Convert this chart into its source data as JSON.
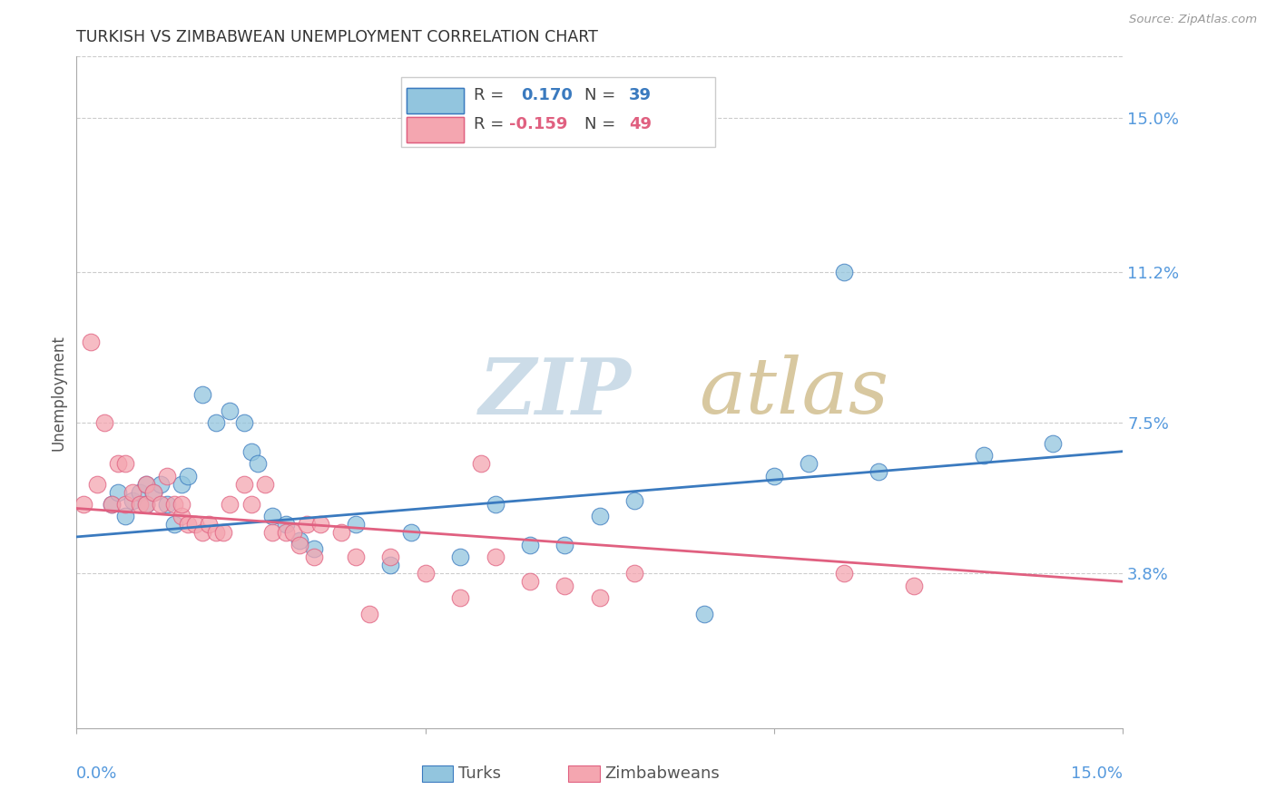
{
  "title": "TURKISH VS ZIMBABWEAN UNEMPLOYMENT CORRELATION CHART",
  "source": "Source: ZipAtlas.com",
  "ylabel": "Unemployment",
  "ytick_labels": [
    "15.0%",
    "11.2%",
    "7.5%",
    "3.8%"
  ],
  "ytick_values": [
    0.15,
    0.112,
    0.075,
    0.038
  ],
  "xlim": [
    0.0,
    0.15
  ],
  "ylim": [
    0.0,
    0.165
  ],
  "turks_color": "#92c5de",
  "zimbabweans_color": "#f4a6b0",
  "trendline_turks_color": "#3a7abf",
  "trendline_zimbabweans_color": "#e06080",
  "watermark_zip_color": "#ccdce8",
  "watermark_atlas_color": "#d8c8a0",
  "background_color": "#ffffff",
  "grid_color": "#cccccc",
  "title_color": "#333333",
  "axis_label_color": "#5599dd",
  "legend_label_color_turks": "#3a7abf",
  "legend_label_color_zim": "#e06080",
  "turks_x": [
    0.005,
    0.006,
    0.007,
    0.008,
    0.009,
    0.01,
    0.01,
    0.011,
    0.012,
    0.013,
    0.014,
    0.015,
    0.016,
    0.018,
    0.02,
    0.022,
    0.024,
    0.025,
    0.026,
    0.028,
    0.03,
    0.032,
    0.034,
    0.04,
    0.045,
    0.048,
    0.055,
    0.06,
    0.065,
    0.07,
    0.075,
    0.08,
    0.09,
    0.1,
    0.105,
    0.11,
    0.115,
    0.13,
    0.14
  ],
  "turks_y": [
    0.055,
    0.058,
    0.052,
    0.056,
    0.058,
    0.055,
    0.06,
    0.058,
    0.06,
    0.055,
    0.05,
    0.06,
    0.062,
    0.082,
    0.075,
    0.078,
    0.075,
    0.068,
    0.065,
    0.052,
    0.05,
    0.046,
    0.044,
    0.05,
    0.04,
    0.048,
    0.042,
    0.055,
    0.045,
    0.045,
    0.052,
    0.056,
    0.028,
    0.062,
    0.065,
    0.112,
    0.063,
    0.067,
    0.07
  ],
  "zimbabweans_x": [
    0.001,
    0.002,
    0.003,
    0.004,
    0.005,
    0.006,
    0.007,
    0.007,
    0.008,
    0.009,
    0.01,
    0.01,
    0.011,
    0.012,
    0.013,
    0.014,
    0.015,
    0.015,
    0.016,
    0.017,
    0.018,
    0.019,
    0.02,
    0.021,
    0.022,
    0.024,
    0.025,
    0.027,
    0.028,
    0.03,
    0.031,
    0.032,
    0.033,
    0.034,
    0.035,
    0.038,
    0.04,
    0.042,
    0.045,
    0.05,
    0.055,
    0.058,
    0.06,
    0.065,
    0.07,
    0.075,
    0.08,
    0.11,
    0.12
  ],
  "zimbabweans_y": [
    0.055,
    0.095,
    0.06,
    0.075,
    0.055,
    0.065,
    0.065,
    0.055,
    0.058,
    0.055,
    0.055,
    0.06,
    0.058,
    0.055,
    0.062,
    0.055,
    0.052,
    0.055,
    0.05,
    0.05,
    0.048,
    0.05,
    0.048,
    0.048,
    0.055,
    0.06,
    0.055,
    0.06,
    0.048,
    0.048,
    0.048,
    0.045,
    0.05,
    0.042,
    0.05,
    0.048,
    0.042,
    0.028,
    0.042,
    0.038,
    0.032,
    0.065,
    0.042,
    0.036,
    0.035,
    0.032,
    0.038,
    0.038,
    0.035
  ],
  "turk_trend_start_y": 0.047,
  "turk_trend_end_y": 0.068,
  "zim_trend_start_y": 0.054,
  "zim_trend_end_y": 0.036
}
